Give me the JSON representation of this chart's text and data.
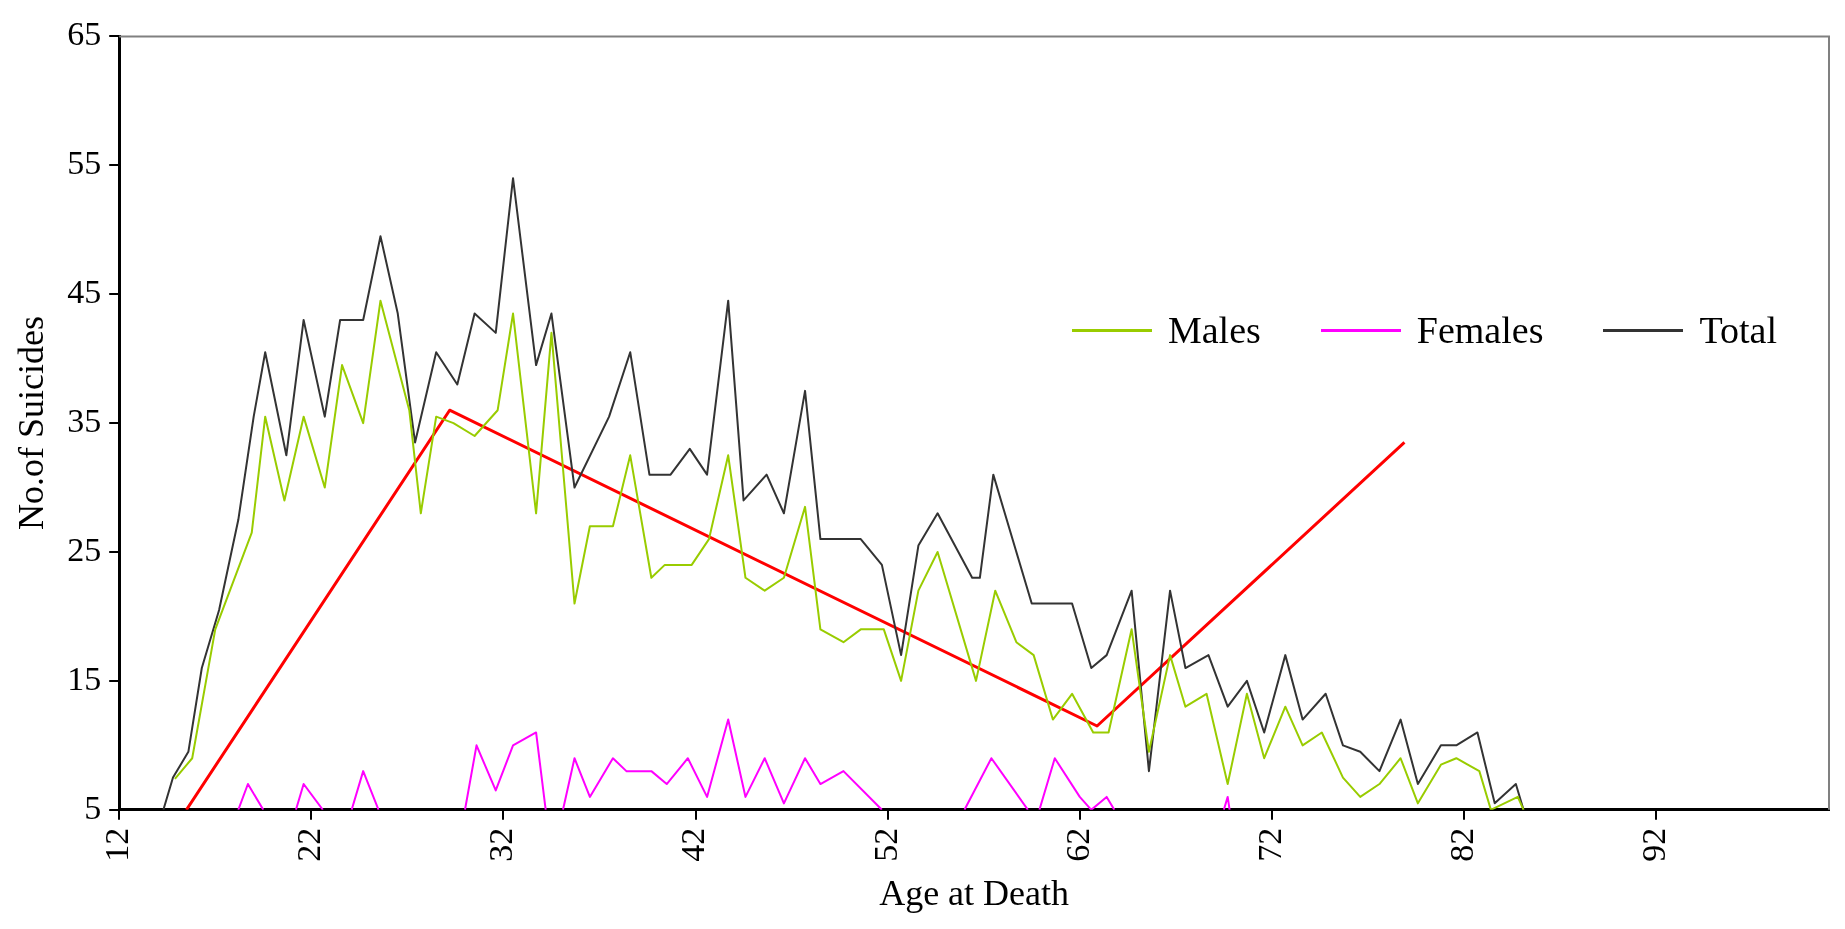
{
  "chart_data": {
    "type": "line",
    "xlabel": "Age at Death",
    "ylabel": "No.of Suicides",
    "xlim": [
      12,
      101
    ],
    "xticks": [
      12,
      22,
      32,
      42,
      52,
      62,
      72,
      82,
      92
    ],
    "ylim": [
      5,
      65
    ],
    "yticks": [
      5,
      15,
      25,
      35,
      45,
      55,
      65
    ],
    "legend": "right",
    "series": [
      {
        "name": "Males",
        "color": "#99cc00",
        "x": [
          14.9,
          15.8,
          17.0,
          18.9,
          19.6,
          20.6,
          21.6,
          22.7,
          23.6,
          24.7,
          25.6,
          27.1,
          27.7,
          28.5,
          29.4,
          30.5,
          31.7,
          32.5,
          33.7,
          34.5,
          35.7,
          36.5,
          37.7,
          38.6,
          39.7,
          40.4,
          41.8,
          42.7,
          43.7,
          44.6,
          45.6,
          46.6,
          47.7,
          48.5,
          49.7,
          50.6,
          51.8,
          52.7,
          53.6,
          54.6,
          56.6,
          57.6,
          58.7,
          59.6,
          60.6,
          61.6,
          62.7,
          63.5,
          64.7,
          65.6,
          66.7,
          67.5,
          68.6,
          69.7,
          70.7,
          71.6,
          72.7,
          73.6,
          74.6,
          75.7,
          76.6,
          77.6,
          78.7,
          79.6,
          80.8,
          81.6,
          82.8,
          83.4,
          84.8,
          85.1
        ],
        "values": [
          7.4,
          9,
          19,
          26.5,
          35.5,
          29,
          35.5,
          30,
          39.5,
          35,
          44.5,
          36,
          28,
          35.5,
          35,
          34,
          36,
          43.5,
          28,
          42,
          21,
          27,
          27,
          32.5,
          23,
          24,
          24,
          26,
          32.5,
          23,
          22,
          23,
          28.5,
          19,
          18,
          19,
          19,
          15,
          22,
          25,
          15,
          22,
          18,
          17,
          12,
          14,
          11,
          11,
          19,
          9.5,
          17,
          13,
          14,
          7,
          14,
          9,
          13,
          10,
          11,
          7.5,
          6,
          7,
          9,
          5.5,
          8.5,
          9,
          8,
          5,
          6,
          5
        ]
      },
      {
        "name": "Females",
        "color": "#ff00ff",
        "x": [
          18.2,
          18.7,
          19.5,
          null,
          21.2,
          21.6,
          22.6,
          null,
          24.1,
          24.7,
          25.5,
          null,
          30.0,
          30.6,
          31.6,
          32.5,
          33.7,
          34.2,
          null,
          35.1,
          35.7,
          36.5,
          37.7,
          38.4,
          39.7,
          40.5,
          41.6,
          42.6,
          43.7,
          44.6,
          45.6,
          46.6,
          47.7,
          48.5,
          49.7,
          51.7,
          null,
          56.0,
          57.4,
          59.3,
          null,
          59.9,
          60.7,
          62.0,
          62.6,
          63.4,
          63.8,
          null,
          69.5,
          69.7,
          69.8
        ],
        "values": [
          5,
          7,
          5,
          null,
          5,
          7,
          5,
          null,
          5,
          8,
          5,
          null,
          5,
          10,
          6.5,
          10,
          11,
          5,
          null,
          5,
          9,
          6,
          9,
          8,
          8,
          7,
          9,
          6,
          12,
          6,
          9,
          5.5,
          9,
          7,
          8,
          5,
          null,
          5,
          9,
          5,
          null,
          5,
          9,
          6,
          5,
          6,
          5,
          null,
          5,
          6,
          5
        ]
      },
      {
        "name": "Total",
        "color": "#333333",
        "x": [
          14.3,
          14.8,
          15.6,
          16.3,
          17.2,
          18.2,
          19.0,
          19.6,
          20.7,
          21.6,
          22.7,
          23.5,
          24.7,
          25.6,
          26.5,
          27.4,
          28.5,
          29.6,
          30.5,
          31.6,
          32.5,
          33.7,
          34.5,
          35.7,
          37.5,
          38.6,
          39.6,
          40.7,
          41.7,
          42.6,
          43.7,
          44.5,
          45.7,
          46.6,
          47.7,
          48.5,
          50.6,
          51.7,
          52.7,
          53.6,
          54.6,
          56.4,
          56.8,
          57.5,
          59.5,
          61.6,
          62.6,
          63.4,
          64.7,
          65.6,
          66.7,
          67.5,
          68.7,
          69.7,
          70.7,
          71.6,
          72.7,
          73.6,
          74.8,
          75.7,
          76.6,
          77.6,
          78.7,
          79.6,
          80.8,
          81.6,
          82.7,
          83.6,
          84.7,
          85.1
        ],
        "values": [
          5,
          7.5,
          9.5,
          16,
          20.5,
          27.5,
          35.5,
          40.5,
          32.5,
          43,
          35.5,
          43,
          43,
          49.5,
          43.5,
          33.5,
          40.5,
          38,
          43.5,
          42,
          54,
          39.5,
          43.5,
          30,
          35.5,
          40.5,
          31,
          31,
          33,
          31,
          44.5,
          29,
          31,
          28,
          37.5,
          26,
          26,
          24,
          17,
          25.5,
          28,
          23,
          23,
          31,
          21,
          21,
          16,
          17,
          22,
          8,
          22,
          16,
          17,
          13,
          15,
          11,
          17,
          12,
          14,
          10,
          9.5,
          8,
          12,
          7,
          10,
          10,
          11,
          5.5,
          7,
          5
        ]
      },
      {
        "color": "#ff0000",
        "x": [
          15.5,
          29.2,
          62.9,
          78.9
        ],
        "values": [
          5,
          36,
          11.5,
          33.5
        ]
      }
    ]
  }
}
